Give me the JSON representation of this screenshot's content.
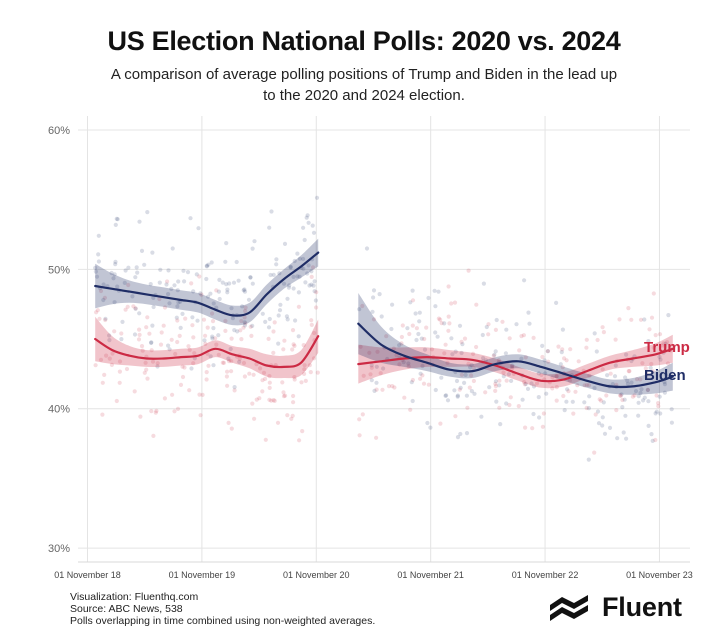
{
  "header": {
    "title": "US Election National Polls: 2020 vs. 2024",
    "subtitle": "A comparison of average polling positions of Trump and Biden in the lead up to the 2020 and 2024 election."
  },
  "chart_data": {
    "type": "scatter",
    "title": "US Election National Polls: 2020 vs. 2024",
    "xlabel": "",
    "ylabel": "",
    "x_ticks": [
      "01 November 18",
      "01 November 19",
      "01 November 20",
      "01 November 21",
      "01 November 22",
      "01 November 23"
    ],
    "x_range": [
      2018.75,
      2024.1
    ],
    "y_ticks": [
      "30%",
      "40%",
      "50%",
      "60%"
    ],
    "y_tick_values": [
      30,
      40,
      50,
      60
    ],
    "ylim": [
      29,
      61
    ],
    "grid": true,
    "series_line_type": "smoothed average with confidence band, over scattered individual polls",
    "series": [
      {
        "name": "Trump",
        "color": "#cc2a44",
        "label_visible": true,
        "segments": [
          {
            "x": [
              2018.9,
              2019.05,
              2019.2,
              2019.35,
              2019.5,
              2019.65,
              2019.8,
              2019.95,
              2020.1,
              2020.25,
              2020.4,
              2020.55,
              2020.7,
              2020.85
            ],
            "y": [
              45.0,
              44.2,
              43.8,
              43.6,
              43.6,
              43.7,
              43.8,
              44.3,
              43.9,
              43.6,
              43.1,
              43.0,
              43.3,
              45.2
            ],
            "band": [
              1.6,
              1.0,
              0.7,
              0.6,
              0.6,
              0.6,
              0.6,
              0.6,
              0.6,
              0.7,
              0.8,
              0.8,
              0.9,
              1.2
            ]
          },
          {
            "x": [
              2021.2,
              2021.4,
              2021.6,
              2021.8,
              2022.0,
              2022.2,
              2022.4,
              2022.6,
              2022.8,
              2023.0,
              2023.2,
              2023.4,
              2023.6,
              2023.8,
              2023.95
            ],
            "y": [
              43.2,
              43.4,
              43.6,
              43.7,
              43.6,
              43.5,
              43.1,
              42.5,
              42.0,
              42.1,
              42.7,
              43.3,
              43.6,
              43.9,
              44.3
            ],
            "band": [
              1.4,
              1.0,
              0.8,
              0.7,
              0.6,
              0.5,
              0.5,
              0.5,
              0.5,
              0.5,
              0.5,
              0.5,
              0.6,
              0.8,
              1.0
            ]
          }
        ]
      },
      {
        "name": "Biden",
        "color": "#1f2d66",
        "label_visible": true,
        "segments": [
          {
            "x": [
              2018.9,
              2019.05,
              2019.2,
              2019.35,
              2019.5,
              2019.65,
              2019.8,
              2019.95,
              2020.1,
              2020.25,
              2020.4,
              2020.55,
              2020.7,
              2020.85
            ],
            "y": [
              48.8,
              48.6,
              48.4,
              48.2,
              48.0,
              47.8,
              47.6,
              47.1,
              46.7,
              46.9,
              48.2,
              49.3,
              50.2,
              51.2
            ],
            "band": [
              1.6,
              1.1,
              0.8,
              0.7,
              0.7,
              0.7,
              0.7,
              0.7,
              0.7,
              0.7,
              0.7,
              0.7,
              0.8,
              1.0
            ]
          },
          {
            "x": [
              2021.2,
              2021.4,
              2021.6,
              2021.8,
              2022.0,
              2022.2,
              2022.4,
              2022.6,
              2022.8,
              2023.0,
              2023.2,
              2023.4,
              2023.6,
              2023.8,
              2023.95
            ],
            "y": [
              46.1,
              44.6,
              43.8,
              43.3,
              42.8,
              42.7,
              43.2,
              43.4,
              43.0,
              42.5,
              42.0,
              41.6,
              41.6,
              41.9,
              42.3
            ],
            "band": [
              2.2,
              1.3,
              0.8,
              0.6,
              0.5,
              0.5,
              0.5,
              0.5,
              0.5,
              0.5,
              0.5,
              0.5,
              0.6,
              0.8,
              1.0
            ]
          }
        ]
      }
    ]
  },
  "footer": {
    "credit": "Visualization: Fluenthq.com",
    "source": "Source: ABC News, 538",
    "note": "Polls overlapping in time combined using non-weighted averages."
  },
  "brand": {
    "name": "Fluent",
    "icon": "fluent-logo-icon"
  }
}
